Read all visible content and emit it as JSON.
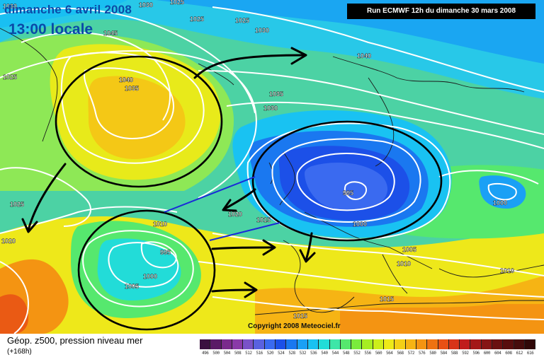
{
  "header": {
    "date_label": "dimanche 6 avril 2008",
    "time_label": "13:00 locale",
    "run_info": "Run ECMWF 12h du dimanche 30 mars 2008"
  },
  "copyright": "Copyright 2008 Meteociel.fr",
  "footer": {
    "product_label": "Géop. z500, pression niveau mer",
    "lead_time": "(+168h)"
  },
  "color_scale": {
    "values": [
      "496",
      "500",
      "504",
      "508",
      "512",
      "516",
      "520",
      "524",
      "528",
      "532",
      "536",
      "540",
      "544",
      "548",
      "552",
      "556",
      "560",
      "564",
      "568",
      "572",
      "576",
      "580",
      "584",
      "588",
      "592",
      "596",
      "600",
      "604",
      "608",
      "612",
      "616"
    ],
    "colors": [
      "#3b1040",
      "#5a1a66",
      "#7a2a8c",
      "#8a3aa8",
      "#7a52c8",
      "#5a62e0",
      "#3a6af0",
      "#1c50e8",
      "#1a78f0",
      "#1aa0f5",
      "#19c2f2",
      "#22dcd8",
      "#3ee6a8",
      "#56e86e",
      "#7aec3c",
      "#a6ee22",
      "#ccee1a",
      "#eeea18",
      "#f4d016",
      "#f6b414",
      "#f49412",
      "#ef7212",
      "#e85014",
      "#d83418",
      "#c01c1c",
      "#a41818",
      "#861414",
      "#6a1010",
      "#580e0e",
      "#460c0c",
      "#300808"
    ]
  },
  "pressure_labels": [
    {
      "text": "1030"
    },
    {
      "text": "1030"
    },
    {
      "text": "1025"
    },
    {
      "text": "1045"
    },
    {
      "text": "1025"
    },
    {
      "text": "1025"
    },
    {
      "text": "1030"
    },
    {
      "text": "1040"
    },
    {
      "text": "1040"
    },
    {
      "text": "1035"
    },
    {
      "text": "1035"
    },
    {
      "text": "1030"
    },
    {
      "text": "1025"
    },
    {
      "text": "1025"
    },
    {
      "text": "1020"
    },
    {
      "text": "1020"
    },
    {
      "text": "1010"
    },
    {
      "text": "1015"
    },
    {
      "text": "995"
    },
    {
      "text": "995"
    },
    {
      "text": "1000"
    },
    {
      "text": "1000"
    },
    {
      "text": "1005"
    },
    {
      "text": "1000"
    },
    {
      "text": "1005"
    },
    {
      "text": "1010"
    },
    {
      "text": "1010"
    },
    {
      "text": "1015"
    },
    {
      "text": "1015"
    }
  ]
}
